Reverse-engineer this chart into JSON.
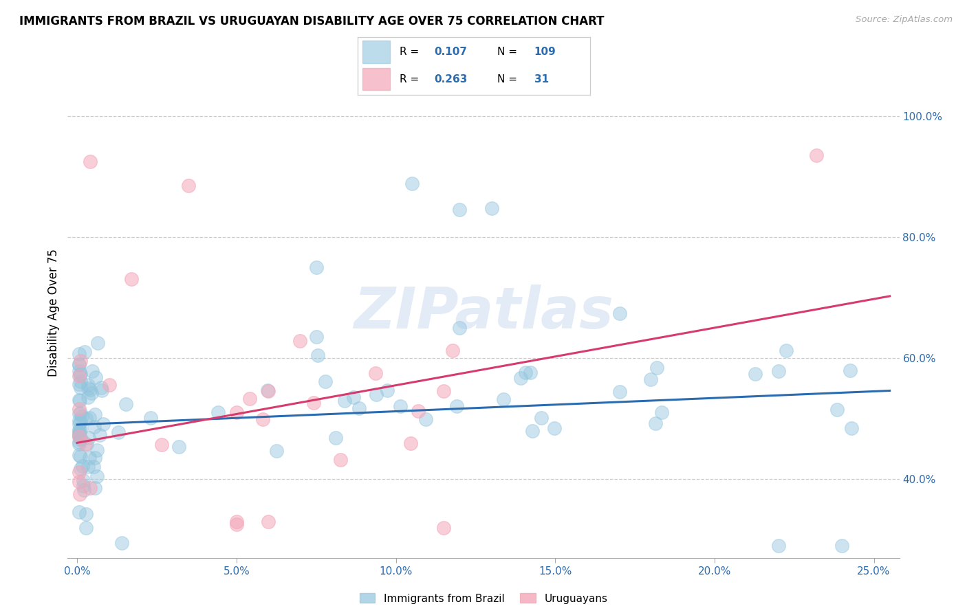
{
  "title": "IMMIGRANTS FROM BRAZIL VS URUGUAYAN DISABILITY AGE OVER 75 CORRELATION CHART",
  "source": "Source: ZipAtlas.com",
  "ylabel": "Disability Age Over 75",
  "xlabel_vals": [
    0.0,
    0.05,
    0.1,
    0.15,
    0.2,
    0.25
  ],
  "xlabel_ticks": [
    "0.0%",
    "5.0%",
    "10.0%",
    "15.0%",
    "20.0%",
    "25.0%"
  ],
  "ylabel_vals": [
    0.4,
    0.6,
    0.8,
    1.0
  ],
  "ylabel_ticks": [
    "40.0%",
    "60.0%",
    "80.0%",
    "100.0%"
  ],
  "xlim": [
    -0.003,
    0.258
  ],
  "ylim": [
    0.27,
    1.08
  ],
  "blue_color": "#92c5de",
  "pink_color": "#f4a6b8",
  "line_blue": "#2b6cb0",
  "line_pink": "#d63b6e",
  "text_blue": "#2b6cb0",
  "R_brazil": "0.107",
  "N_brazil": "109",
  "R_uruguay": "0.263",
  "N_uruguay": "31",
  "intercept_brazil": 0.49,
  "slope_brazil": 0.22,
  "intercept_uruguay": 0.46,
  "slope_uruguay": 0.95,
  "watermark": "ZIPatlas",
  "legend_label_brazil": "Immigrants from Brazil",
  "legend_label_uruguay": "Uruguayans",
  "brazil_x": [
    0.0005,
    0.001,
    0.001,
    0.001,
    0.001,
    0.0015,
    0.002,
    0.002,
    0.002,
    0.002,
    0.003,
    0.003,
    0.003,
    0.003,
    0.003,
    0.004,
    0.004,
    0.004,
    0.004,
    0.005,
    0.005,
    0.005,
    0.005,
    0.006,
    0.006,
    0.006,
    0.007,
    0.007,
    0.007,
    0.008,
    0.008,
    0.008,
    0.009,
    0.009,
    0.01,
    0.01,
    0.011,
    0.011,
    0.012,
    0.012,
    0.013,
    0.013,
    0.014,
    0.014,
    0.015,
    0.015,
    0.016,
    0.016,
    0.017,
    0.017,
    0.018,
    0.018,
    0.019,
    0.02,
    0.021,
    0.022,
    0.023,
    0.024,
    0.025,
    0.026,
    0.027,
    0.028,
    0.029,
    0.03,
    0.032,
    0.034,
    0.036,
    0.038,
    0.04,
    0.042,
    0.044,
    0.046,
    0.048,
    0.05,
    0.052,
    0.055,
    0.06,
    0.065,
    0.07,
    0.075,
    0.08,
    0.085,
    0.09,
    0.095,
    0.1,
    0.11,
    0.12,
    0.13,
    0.14,
    0.15,
    0.16,
    0.17,
    0.18,
    0.19,
    0.2,
    0.21,
    0.22,
    0.23,
    0.24,
    0.003,
    0.001,
    0.002,
    0.075,
    0.105,
    0.12,
    0.115,
    0.18,
    0.22,
    0.001
  ],
  "brazil_y": [
    0.5,
    0.51,
    0.49,
    0.5,
    0.48,
    0.52,
    0.5,
    0.51,
    0.49,
    0.48,
    0.52,
    0.5,
    0.51,
    0.49,
    0.5,
    0.53,
    0.51,
    0.5,
    0.48,
    0.54,
    0.5,
    0.52,
    0.51,
    0.53,
    0.5,
    0.52,
    0.54,
    0.51,
    0.5,
    0.52,
    0.53,
    0.51,
    0.55,
    0.52,
    0.56,
    0.53,
    0.57,
    0.54,
    0.55,
    0.52,
    0.58,
    0.53,
    0.56,
    0.52,
    0.55,
    0.53,
    0.57,
    0.52,
    0.56,
    0.53,
    0.57,
    0.54,
    0.56,
    0.55,
    0.57,
    0.55,
    0.56,
    0.54,
    0.57,
    0.55,
    0.56,
    0.54,
    0.57,
    0.55,
    0.56,
    0.55,
    0.57,
    0.56,
    0.55,
    0.57,
    0.54,
    0.57,
    0.55,
    0.57,
    0.56,
    0.55,
    0.57,
    0.55,
    0.62,
    0.63,
    0.54,
    0.56,
    0.55,
    0.57,
    0.56,
    0.57,
    0.54,
    0.55,
    0.57,
    0.55,
    0.56,
    0.55,
    0.56,
    0.57,
    0.55,
    0.56,
    0.57,
    0.55,
    0.29,
    0.37,
    0.36,
    0.36,
    0.75,
    0.88,
    0.85,
    0.84,
    0.565,
    0.575,
    0.39
  ],
  "uruguay_x": [
    0.001,
    0.001,
    0.002,
    0.002,
    0.003,
    0.003,
    0.004,
    0.004,
    0.005,
    0.006,
    0.007,
    0.008,
    0.009,
    0.01,
    0.011,
    0.012,
    0.013,
    0.014,
    0.015,
    0.016,
    0.017,
    0.018,
    0.02,
    0.025,
    0.03,
    0.04,
    0.05,
    0.06,
    0.115,
    0.23,
    0.001
  ],
  "uruguay_y": [
    0.46,
    0.48,
    0.45,
    0.47,
    0.44,
    0.46,
    0.43,
    0.45,
    0.44,
    0.43,
    0.42,
    0.44,
    0.43,
    0.45,
    0.43,
    0.44,
    0.45,
    0.43,
    0.44,
    0.43,
    0.44,
    0.45,
    0.44,
    0.46,
    0.47,
    0.45,
    0.48,
    0.49,
    0.55,
    0.935,
    0.92
  ]
}
